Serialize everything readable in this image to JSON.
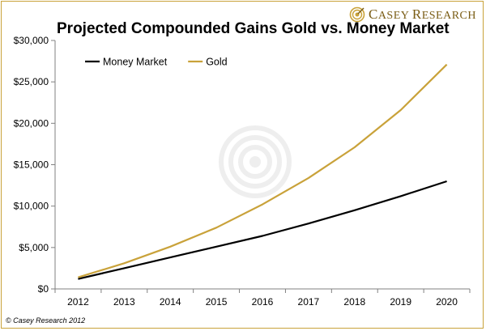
{
  "brand": {
    "name_first_cap": "C",
    "name_first_rest": "ASEY",
    "name_second_cap": "R",
    "name_second_rest": "ESEARCH",
    "accent_color": "#c9a23a"
  },
  "footer": {
    "copyright": "© Casey Research 2012"
  },
  "chart_data": {
    "type": "line",
    "title": "Projected Compounded Gains Gold vs. Money Market",
    "xlabel": "",
    "ylabel": "",
    "categories": [
      "2012",
      "2013",
      "2014",
      "2015",
      "2016",
      "2017",
      "2018",
      "2019",
      "2020"
    ],
    "ylim": [
      0,
      30000
    ],
    "yticks": [
      0,
      5000,
      10000,
      15000,
      20000,
      25000,
      30000
    ],
    "ytick_labels": [
      "$0",
      "$5,000",
      "$10,000",
      "$15,000",
      "$20,000",
      "$25,000",
      "$30,000"
    ],
    "grid": false,
    "legend_position": "top-left",
    "series": [
      {
        "name": "Money Market",
        "color": "#000000",
        "values": [
          1200,
          2500,
          3800,
          5100,
          6400,
          7900,
          9500,
          11200,
          13000
        ]
      },
      {
        "name": "Gold",
        "color": "#c9a23a",
        "values": [
          1400,
          3100,
          5100,
          7400,
          10200,
          13400,
          17100,
          21600,
          27100
        ]
      }
    ]
  }
}
